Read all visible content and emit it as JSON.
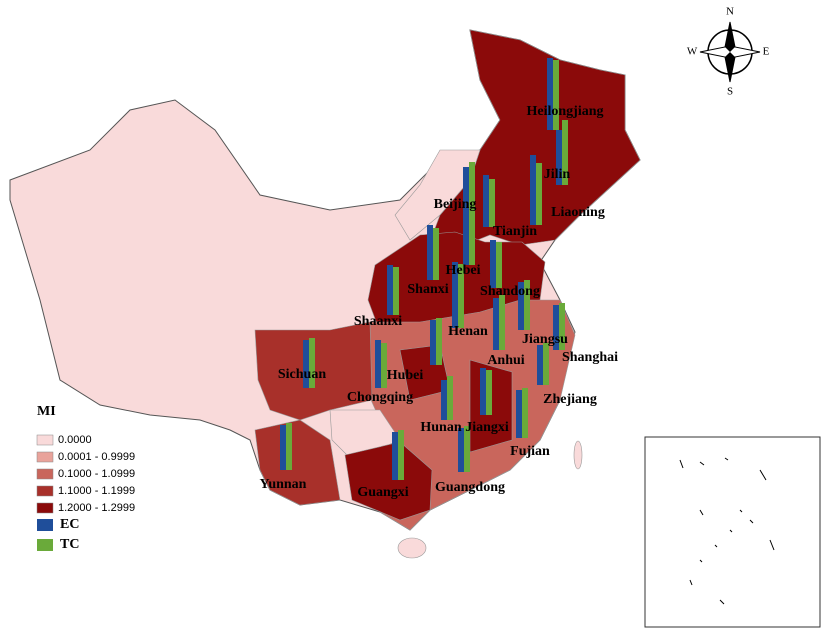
{
  "legend": {
    "title": "MI",
    "classes": [
      {
        "label": "0.0000",
        "color": "#f9dada"
      },
      {
        "label": "0.0001 - 0.9999",
        "color": "#e9a39b"
      },
      {
        "label": "0.1000 - 1.0999",
        "color": "#c9665c"
      },
      {
        "label": "1.1000 - 1.1999",
        "color": "#a8302a"
      },
      {
        "label": "1.2000 - 1.2999",
        "color": "#8b0a0a"
      }
    ],
    "series": [
      {
        "name": "EC",
        "color": "#1f4e9a"
      },
      {
        "name": "TC",
        "color": "#6aaa3a"
      }
    ]
  },
  "compass": {
    "n": "N",
    "s": "S",
    "e": "E",
    "w": "W"
  },
  "provinces": [
    {
      "name": "Heilongjiang",
      "ec": 72,
      "tc": 70
    },
    {
      "name": "Jilin",
      "ec": 55,
      "tc": 65
    },
    {
      "name": "Liaoning",
      "ec": 70,
      "tc": 62
    },
    {
      "name": "Beijing",
      "ec": 60,
      "tc": 65
    },
    {
      "name": "Tianjin",
      "ec": 52,
      "tc": 48
    },
    {
      "name": "Hebei",
      "ec": 50,
      "tc": 52
    },
    {
      "name": "Shanxi",
      "ec": 55,
      "tc": 52
    },
    {
      "name": "Shandong",
      "ec": 48,
      "tc": 46
    },
    {
      "name": "Shaanxi",
      "ec": 50,
      "tc": 48
    },
    {
      "name": "Henan",
      "ec": 66,
      "tc": 64
    },
    {
      "name": "Jiangsu",
      "ec": 48,
      "tc": 50
    },
    {
      "name": "Shanghai",
      "ec": 45,
      "tc": 47
    },
    {
      "name": "Anhui",
      "ec": 52,
      "tc": 55
    },
    {
      "name": "Sichuan",
      "ec": 48,
      "tc": 50
    },
    {
      "name": "Chongqing",
      "ec": 48,
      "tc": 45
    },
    {
      "name": "Hubei",
      "ec": 45,
      "tc": 47
    },
    {
      "name": "Zhejiang",
      "ec": 40,
      "tc": 42
    },
    {
      "name": "Hunan",
      "ec": 40,
      "tc": 44
    },
    {
      "name": "Jiangxi",
      "ec": 47,
      "tc": 45
    },
    {
      "name": "Fujian",
      "ec": 48,
      "tc": 50
    },
    {
      "name": "Yunnan",
      "ec": 45,
      "tc": 47
    },
    {
      "name": "Guangxi",
      "ec": 48,
      "tc": 50
    },
    {
      "name": "Guangdong",
      "ec": 44,
      "tc": 46
    }
  ]
}
